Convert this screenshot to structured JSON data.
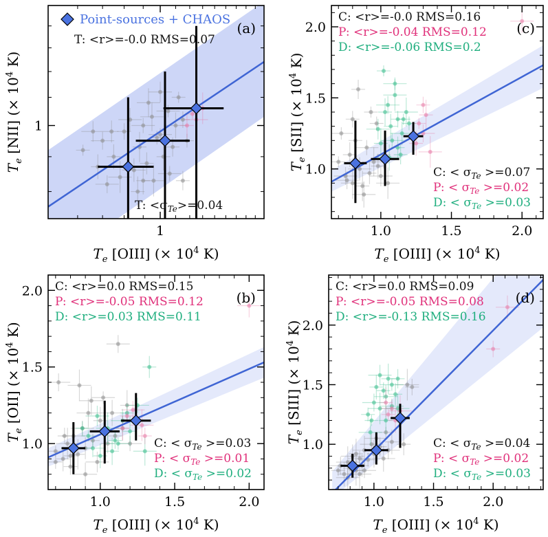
{
  "colors": {
    "fit_line": "#3f65d4",
    "band": "#cdd6f7",
    "band_light": "#e4e9fb",
    "point_source": "#4a72e0",
    "chaos": "#111111",
    "c_text": "#111111",
    "p_text": "#e0307a",
    "d_text": "#1fae7e",
    "gray": "#8c8c8c",
    "pink": "#e77aa6",
    "green": "#3bbd8c"
  },
  "chart_data": [
    {
      "id": "a",
      "type": "scatter",
      "panel_label": "(a)",
      "xlabel": "[OIII] (× 10",
      "ylabel": "[NII] (× 10",
      "label_prefix": "T",
      "label_sub": "e",
      "label_sup": "4",
      "label_suffix": " K)",
      "xlim": [
        0.5,
        1.9
      ],
      "ylim": [
        0.73,
        1.5
      ],
      "log_axes": true,
      "xticks": [
        1
      ],
      "xtick_labels": [
        "1"
      ],
      "yticks": [
        1
      ],
      "ytick_labels": [
        "1"
      ],
      "legend": "Point-sources + CHAOS",
      "fit": {
        "x": [
          0.5,
          1.9
        ],
        "y": [
          0.76,
          1.24
        ]
      },
      "band": {
        "upper": [
          0.92,
          1.52
        ],
        "lower": [
          0.62,
          1.03
        ]
      },
      "stats": [
        {
          "text": "T: <r>=-0.0 RMS=0.07",
          "color": "c_text",
          "pos": "top-center"
        }
      ],
      "sigma": [
        {
          "text": "T: <σ",
          "value": ">=0.04",
          "color": "c_text",
          "pos": "bottom-right"
        }
      ],
      "binned": [
        {
          "x": 0.82,
          "y": 0.87,
          "xerr": 0.14,
          "yerr_lo": 0.2,
          "yerr_hi": 0.23
        },
        {
          "x": 1.03,
          "y": 0.95,
          "xerr": 0.17,
          "yerr_lo": 0.23,
          "yerr_hi": 0.25
        },
        {
          "x": 1.25,
          "y": 1.06,
          "xerr": 0.23,
          "yerr_lo": 0.33,
          "yerr_hi": 0.34
        }
      ],
      "scatter_gray": [
        [
          0.62,
          0.92
        ],
        [
          0.7,
          0.95
        ],
        [
          0.75,
          0.9
        ],
        [
          0.78,
          0.84
        ],
        [
          0.8,
          0.98
        ],
        [
          0.85,
          0.86
        ],
        [
          0.88,
          0.93
        ],
        [
          0.9,
          1.0
        ],
        [
          0.92,
          0.88
        ],
        [
          0.95,
          1.03
        ],
        [
          0.98,
          0.96
        ],
        [
          1.0,
          1.12
        ],
        [
          1.02,
          0.9
        ],
        [
          1.05,
          1.05
        ],
        [
          1.08,
          0.93
        ],
        [
          1.1,
          1.0
        ],
        [
          1.12,
          1.1
        ],
        [
          0.72,
          0.82
        ],
        [
          0.68,
          0.87
        ],
        [
          0.96,
          0.83
        ],
        [
          1.15,
          1.02
        ],
        [
          0.83,
          1.02
        ],
        [
          0.87,
          0.8
        ],
        [
          1.06,
          0.85
        ],
        [
          0.74,
          0.98
        ],
        [
          0.93,
          1.08
        ],
        [
          1.18,
          0.95
        ],
        [
          0.66,
          0.98
        ],
        [
          0.9,
          0.83
        ],
        [
          1.0,
          0.97
        ],
        [
          1.15,
          0.83
        ]
      ],
      "scatter_pink": [
        [
          1.22,
          1.04
        ],
        [
          1.25,
          1.02
        ],
        [
          1.18,
          1.0
        ],
        [
          1.3,
          1.06
        ]
      ],
      "scatter_green": []
    },
    {
      "id": "c",
      "type": "scatter",
      "panel_label": "(c)",
      "xlabel": "[OIII] (× 10",
      "ylabel": "[SII] (× 10",
      "label_prefix": "T",
      "label_sub": "e",
      "label_sup": "4",
      "label_suffix": " K)",
      "xlim": [
        0.65,
        2.15
      ],
      "ylim": [
        0.65,
        2.15
      ],
      "log_axes": false,
      "xticks": [
        1.0,
        1.5,
        2.0
      ],
      "xtick_labels": [
        "1.0",
        "1.5",
        "2.0"
      ],
      "yticks": [
        1.0,
        1.5,
        2.0
      ],
      "ytick_labels": [
        "1.0",
        "1.5",
        "2.0"
      ],
      "fit": {
        "x": [
          0.65,
          2.15
        ],
        "y": [
          0.91,
          1.73
        ]
      },
      "band": {
        "upper": [
          0.99,
          1.87
        ],
        "lower": [
          0.84,
          1.57
        ]
      },
      "stats": [
        {
          "text": "C: <r>=-0.0 RMS=0.16",
          "color": "c_text"
        },
        {
          "text": "P: <r>=-0.04 RMS=0.12",
          "color": "p_text"
        },
        {
          "text": "D: <r>=-0.06 RMS=0.2",
          "color": "d_text"
        }
      ],
      "sigma": [
        {
          "text": "C: < σ",
          "value": " >=0.07",
          "color": "c_text"
        },
        {
          "text": "P: < σ",
          "value": " >=0.02",
          "color": "p_text"
        },
        {
          "text": "D: < σ",
          "value": " >=0.03",
          "color": "d_text"
        }
      ],
      "binned": [
        {
          "x": 0.82,
          "y": 1.04,
          "xerr": 0.08,
          "yerr_lo": 0.28,
          "yerr_hi": 0.3
        },
        {
          "x": 1.03,
          "y": 1.07,
          "xerr": 0.1,
          "yerr_lo": 0.19,
          "yerr_hi": 0.2
        },
        {
          "x": 1.23,
          "y": 1.23,
          "xerr": 0.07,
          "yerr_lo": 0.13,
          "yerr_hi": 0.1
        }
      ],
      "scatter_gray": [
        [
          0.7,
          1.05
        ],
        [
          0.75,
          0.95
        ],
        [
          0.78,
          1.1
        ],
        [
          0.8,
          0.9
        ],
        [
          0.82,
          1.2
        ],
        [
          0.85,
          1.0
        ],
        [
          0.87,
          0.88
        ],
        [
          0.9,
          1.15
        ],
        [
          0.92,
          0.97
        ],
        [
          0.95,
          1.05
        ],
        [
          0.97,
          1.32
        ],
        [
          1.0,
          0.95
        ],
        [
          1.02,
          1.1
        ],
        [
          0.72,
          1.25
        ],
        [
          0.84,
          1.56
        ],
        [
          0.88,
          0.82
        ],
        [
          0.93,
          1.4
        ],
        [
          0.76,
          0.92
        ],
        [
          0.98,
          1.02
        ],
        [
          1.05,
          0.9
        ],
        [
          0.8,
          1.35
        ]
      ],
      "scatter_pink": [
        [
          1.27,
          1.32
        ],
        [
          1.3,
          1.25
        ],
        [
          1.25,
          1.18
        ],
        [
          1.35,
          1.12
        ],
        [
          1.3,
          1.45
        ],
        [
          2.0,
          2.04
        ],
        [
          1.32,
          1.38
        ]
      ],
      "scatter_green": [
        [
          1.02,
          1.69
        ],
        [
          1.05,
          1.45
        ],
        [
          1.07,
          1.3
        ],
        [
          1.1,
          1.52
        ],
        [
          1.12,
          1.35
        ],
        [
          1.15,
          1.25
        ],
        [
          1.0,
          1.18
        ],
        [
          1.08,
          1.2
        ],
        [
          1.12,
          1.15
        ],
        [
          1.18,
          1.4
        ],
        [
          1.2,
          1.32
        ],
        [
          0.98,
          1.28
        ],
        [
          1.03,
          1.4
        ],
        [
          1.1,
          1.6
        ],
        [
          1.14,
          1.1
        ],
        [
          1.06,
          1.08
        ],
        [
          1.16,
          1.35
        ]
      ]
    },
    {
      "id": "b",
      "type": "scatter",
      "panel_label": "(b)",
      "xlabel": "[OIII] (× 10",
      "ylabel": "[OII] (× 10",
      "label_prefix": "T",
      "label_sub": "e",
      "label_sup": "4",
      "label_suffix": " K)",
      "xlim": [
        0.65,
        2.1
      ],
      "ylim": [
        0.7,
        2.1
      ],
      "log_axes": false,
      "xticks": [
        1.0,
        1.5,
        2.0
      ],
      "xtick_labels": [
        "1.0",
        "1.5",
        "2.0"
      ],
      "yticks": [
        1.0,
        1.5,
        2.0
      ],
      "ytick_labels": [
        "1.0",
        "1.5",
        "2.0"
      ],
      "fit": {
        "x": [
          0.65,
          2.1
        ],
        "y": [
          0.91,
          1.53
        ]
      },
      "band": {
        "upper": [
          0.97,
          1.63
        ],
        "lower": [
          0.85,
          1.43
        ]
      },
      "stats": [
        {
          "text": "C: <r>=0.0 RMS=0.15",
          "color": "c_text"
        },
        {
          "text": "P: <r>=-0.05 RMS=0.12",
          "color": "p_text"
        },
        {
          "text": "D: <r>=0.03 RMS=0.11",
          "color": "d_text"
        }
      ],
      "sigma": [
        {
          "text": "C: < σ",
          "value": " >=0.03",
          "color": "c_text"
        },
        {
          "text": "P: < σ",
          "value": " >=0.01",
          "color": "p_text"
        },
        {
          "text": "D: < σ",
          "value": " >=0.02",
          "color": "d_text"
        }
      ],
      "binned": [
        {
          "x": 0.82,
          "y": 0.97,
          "xerr": 0.08,
          "yerr_lo": 0.17,
          "yerr_hi": 0.17
        },
        {
          "x": 1.03,
          "y": 1.08,
          "xerr": 0.1,
          "yerr_lo": 0.21,
          "yerr_hi": 0.2
        },
        {
          "x": 1.24,
          "y": 1.15,
          "xerr": 0.1,
          "yerr_lo": 0.13,
          "yerr_hi": 0.18
        }
      ],
      "scatter_gray": [
        [
          0.7,
          0.95
        ],
        [
          0.72,
          1.4
        ],
        [
          0.75,
          0.9
        ],
        [
          0.78,
          1.0
        ],
        [
          0.8,
          0.85
        ],
        [
          0.82,
          1.05
        ],
        [
          0.85,
          0.93
        ],
        [
          0.88,
          1.1
        ],
        [
          0.9,
          0.97
        ],
        [
          0.92,
          1.2
        ],
        [
          0.95,
          1.02
        ],
        [
          0.98,
          0.88
        ],
        [
          1.0,
          1.15
        ],
        [
          1.02,
          1.3
        ],
        [
          1.05,
          1.0
        ],
        [
          1.08,
          1.2
        ],
        [
          1.1,
          1.05
        ],
        [
          1.12,
          1.65
        ],
        [
          1.15,
          1.1
        ],
        [
          0.86,
          1.38
        ],
        [
          0.76,
          1.05
        ],
        [
          0.9,
          0.8
        ],
        [
          1.18,
          1.25
        ],
        [
          1.2,
          1.0
        ],
        [
          0.8,
          0.92
        ],
        [
          0.94,
          1.28
        ],
        [
          0.7,
          0.88
        ]
      ],
      "scatter_pink": [
        [
          1.18,
          1.18
        ],
        [
          1.22,
          1.22
        ],
        [
          1.15,
          1.1
        ],
        [
          1.28,
          1.12
        ],
        [
          1.3,
          1.05
        ],
        [
          2.0,
          1.9
        ]
      ],
      "scatter_green": [
        [
          0.92,
          1.05
        ],
        [
          0.95,
          0.97
        ],
        [
          1.0,
          0.92
        ],
        [
          1.05,
          1.1
        ],
        [
          1.1,
          1.02
        ],
        [
          1.15,
          1.15
        ],
        [
          1.2,
          1.08
        ],
        [
          1.25,
          1.25
        ],
        [
          1.33,
          1.5
        ],
        [
          1.3,
          0.95
        ],
        [
          0.88,
          1.1
        ],
        [
          0.98,
          1.18
        ],
        [
          1.08,
          0.95
        ],
        [
          1.12,
          1.0
        ],
        [
          1.18,
          1.2
        ]
      ]
    },
    {
      "id": "d",
      "type": "scatter",
      "panel_label": "(d)",
      "xlabel": "[OIII] (× 10",
      "ylabel": "[SIII] (× 10",
      "label_prefix": "T",
      "label_sub": "e",
      "label_sup": "4",
      "label_suffix": " K)",
      "xlim": [
        0.62,
        2.42
      ],
      "ylim": [
        0.62,
        2.42
      ],
      "log_axes": false,
      "xticks": [
        1.0,
        1.5,
        2.0
      ],
      "xtick_labels": [
        "1.0",
        "1.5",
        "2.0"
      ],
      "yticks": [
        1.0,
        1.5,
        2.0
      ],
      "ytick_labels": [
        "1.0",
        "1.5",
        "2.0"
      ],
      "fit": {
        "x": [
          0.65,
          2.42
        ],
        "y": [
          0.59,
          2.38
        ]
      },
      "band": {
        "upper": [
          0.77,
          2.9
        ],
        "lower": [
          0.55,
          1.98
        ]
      },
      "stats": [
        {
          "text": "C: <r>=0.0 RMS=0.09",
          "color": "c_text"
        },
        {
          "text": "P: <r>=-0.05 RMS=0.08",
          "color": "p_text"
        },
        {
          "text": "D: <r>=-0.13 RMS=0.16",
          "color": "d_text"
        }
      ],
      "sigma": [
        {
          "text": "C: < σ",
          "value": " >=0.04",
          "color": "c_text"
        },
        {
          "text": "P: < σ",
          "value": " >=0.02",
          "color": "p_text"
        },
        {
          "text": "D: < σ",
          "value": " >=0.03",
          "color": "d_text"
        }
      ],
      "binned": [
        {
          "x": 0.82,
          "y": 0.82,
          "xerr": 0.1,
          "yerr_lo": 0.1,
          "yerr_hi": 0.1
        },
        {
          "x": 1.02,
          "y": 0.95,
          "xerr": 0.1,
          "yerr_lo": 0.12,
          "yerr_hi": 0.15
        },
        {
          "x": 1.22,
          "y": 1.22,
          "xerr": 0.08,
          "yerr_lo": 0.25,
          "yerr_hi": 0.12
        }
      ],
      "scatter_gray": [
        [
          0.7,
          0.78
        ],
        [
          0.72,
          0.82
        ],
        [
          0.75,
          0.75
        ],
        [
          0.78,
          0.85
        ],
        [
          0.8,
          0.8
        ],
        [
          0.82,
          0.9
        ],
        [
          0.85,
          0.78
        ],
        [
          0.88,
          0.88
        ],
        [
          0.9,
          0.82
        ],
        [
          0.92,
          0.95
        ],
        [
          0.95,
          0.87
        ],
        [
          0.98,
          1.0
        ],
        [
          1.0,
          0.92
        ],
        [
          1.02,
          1.05
        ],
        [
          1.05,
          0.98
        ],
        [
          1.08,
          0.88
        ],
        [
          1.1,
          1.1
        ],
        [
          1.12,
          0.95
        ],
        [
          1.15,
          1.02
        ],
        [
          1.28,
          1.5
        ],
        [
          1.32,
          1.48
        ],
        [
          0.78,
          0.72
        ],
        [
          0.85,
          0.92
        ],
        [
          0.92,
          0.78
        ],
        [
          1.25,
          1.0
        ],
        [
          0.88,
          0.75
        ]
      ],
      "scatter_pink": [
        [
          1.12,
          1.25
        ],
        [
          1.15,
          1.3
        ],
        [
          1.18,
          1.2
        ],
        [
          1.22,
          1.28
        ],
        [
          2.0,
          1.8
        ],
        [
          2.12,
          2.15
        ],
        [
          1.1,
          1.35
        ]
      ],
      "scatter_green": [
        [
          0.98,
          1.2
        ],
        [
          1.0,
          1.35
        ],
        [
          1.02,
          1.48
        ],
        [
          1.05,
          1.3
        ],
        [
          1.08,
          1.45
        ],
        [
          1.1,
          1.4
        ],
        [
          1.12,
          1.55
        ],
        [
          1.15,
          1.32
        ],
        [
          1.18,
          1.42
        ],
        [
          1.2,
          1.3
        ],
        [
          0.95,
          1.25
        ],
        [
          1.05,
          1.58
        ],
        [
          1.1,
          1.2
        ],
        [
          1.15,
          1.5
        ],
        [
          1.2,
          1.55
        ],
        [
          0.97,
          1.1
        ]
      ]
    }
  ]
}
